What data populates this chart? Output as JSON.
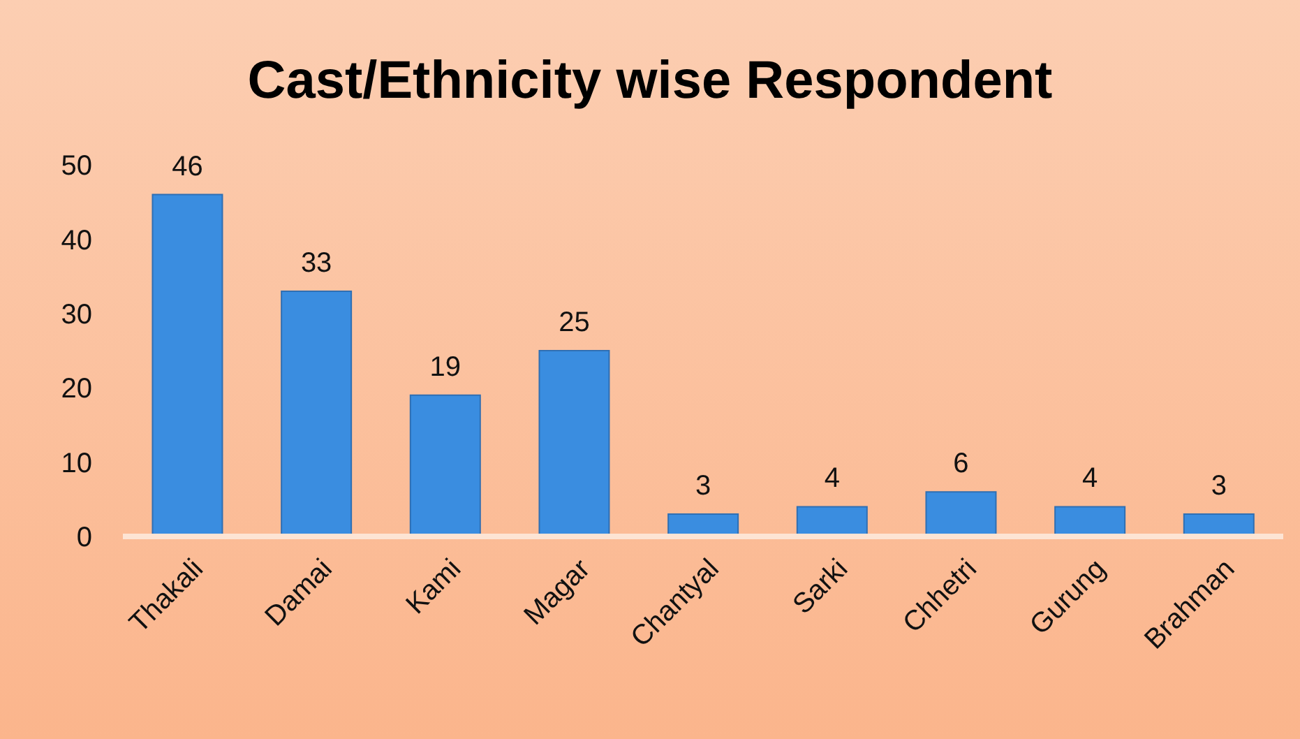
{
  "chart_data": {
    "type": "bar",
    "title": "Cast/Ethnicity wise Respondent",
    "categories": [
      "Thakali",
      "Damai",
      "Kami",
      "Magar",
      "Chantyal",
      "Sarki",
      "Chhetri",
      "Gurung",
      "Brahman"
    ],
    "values": [
      46,
      33,
      19,
      25,
      3,
      4,
      6,
      4,
      3
    ],
    "color": "#3a8de0",
    "ylim": [
      0,
      50
    ],
    "yticks": [
      0,
      10,
      20,
      30,
      40,
      50
    ],
    "data_labels": true
  }
}
